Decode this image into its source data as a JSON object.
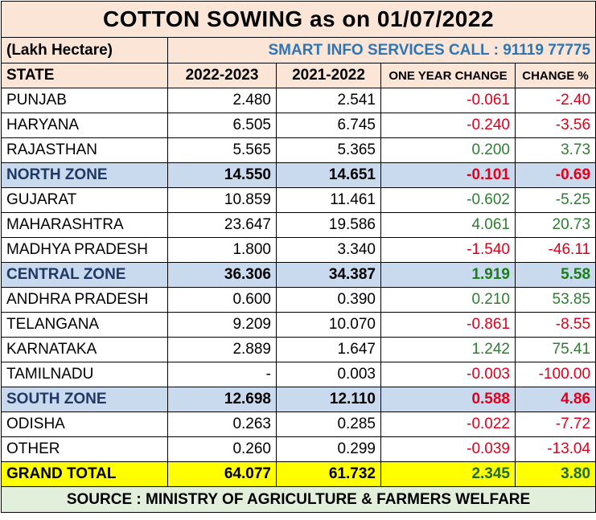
{
  "title": "COTTON SOWING  as on 01/07/2022",
  "unit": "(Lakh Hectare)",
  "promo": "SMART INFO SERVICES CALL : 91119 77775",
  "headers": [
    "STATE",
    "2022-2023",
    "2021-2022",
    "ONE YEAR CHANGE",
    "CHANGE %"
  ],
  "rows": [
    {
      "state": "PUNJAB",
      "y2022": "2.480",
      "y2021": "2.541",
      "change": "-0.061",
      "pct": "-2.40",
      "type": "state"
    },
    {
      "state": "HARYANA",
      "y2022": "6.505",
      "y2021": "6.745",
      "change": "-0.240",
      "pct": "-3.56",
      "type": "state"
    },
    {
      "state": "RAJASTHAN",
      "y2022": "5.565",
      "y2021": "5.365",
      "change": "0.200",
      "pct": "3.73",
      "type": "state"
    },
    {
      "state": "NORTH ZONE",
      "y2022": "14.550",
      "y2021": "14.651",
      "change": "-0.101",
      "pct": "-0.69",
      "type": "zone"
    },
    {
      "state": "GUJARAT",
      "y2022": "10.859",
      "y2021": "11.461",
      "change": "-0.602",
      "pct": "-5.25",
      "type": "state",
      "color_override": "pos"
    },
    {
      "state": "MAHARASHTRA",
      "y2022": "23.647",
      "y2021": "19.586",
      "change": "4.061",
      "pct": "20.73",
      "type": "state"
    },
    {
      "state": "MADHYA PRADESH",
      "y2022": "1.800",
      "y2021": "3.340",
      "change": "-1.540",
      "pct": "-46.11",
      "type": "state"
    },
    {
      "state": "CENTRAL ZONE",
      "y2022": "36.306",
      "y2021": "34.387",
      "change": "1.919",
      "pct": "5.58",
      "type": "zone"
    },
    {
      "state": "ANDHRA PRADESH",
      "y2022": "0.600",
      "y2021": "0.390",
      "change": "0.210",
      "pct": "53.85",
      "type": "state"
    },
    {
      "state": "TELANGANA",
      "y2022": "9.209",
      "y2021": "10.070",
      "change": "-0.861",
      "pct": "-8.55",
      "type": "state"
    },
    {
      "state": "KARNATAKA",
      "y2022": "2.889",
      "y2021": "1.647",
      "change": "1.242",
      "pct": "75.41",
      "type": "state"
    },
    {
      "state": "TAMILNADU",
      "y2022": "-",
      "y2021": "0.003",
      "change": "-0.003",
      "pct": "-100.00",
      "type": "state"
    },
    {
      "state": "SOUTH ZONE",
      "y2022": "12.698",
      "y2021": "12.110",
      "change": "0.588",
      "pct": "4.86",
      "type": "zone",
      "color_override": "neg"
    },
    {
      "state": "ODISHA",
      "y2022": "0.263",
      "y2021": "0.285",
      "change": "-0.022",
      "pct": "-7.72",
      "type": "state"
    },
    {
      "state": "OTHER",
      "y2022": "0.260",
      "y2021": "0.299",
      "change": "-0.039",
      "pct": "-13.04",
      "type": "state"
    },
    {
      "state": "GRAND TOTAL",
      "y2022": "64.077",
      "y2021": "61.732",
      "change": "2.345",
      "pct": "3.80",
      "type": "total"
    }
  ],
  "source": "SOURCE : MINISTRY OF AGRICULTURE & FARMERS WELFARE",
  "colors": {
    "negative": "#e0001b",
    "positive": "#2e7d32",
    "header_bg": "#fbe5d6",
    "zone_bg": "#c9d9ee",
    "total_bg": "#ffff00",
    "source_bg": "#e2efda",
    "promo": "#2e75b6"
  }
}
